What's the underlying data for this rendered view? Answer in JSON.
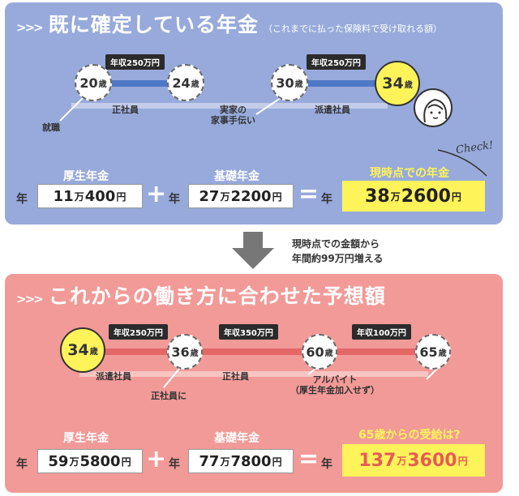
{
  "top": {
    "arrows": ">>>",
    "title": "既に確定している年金",
    "subtitle": "（これまでに払った保険料で受け取れる額）",
    "ages": {
      "a20": {
        "num": "20",
        "unit": "歳"
      },
      "a24": {
        "num": "24",
        "unit": "歳"
      },
      "a30": {
        "num": "30",
        "unit": "歳"
      },
      "a34": {
        "num": "34",
        "unit": "歳"
      }
    },
    "tags": [
      "年収250万円",
      "年収250万円"
    ],
    "labels": {
      "shushoku": "就職",
      "seishain": "正社員",
      "jikka": "実家の",
      "kaji": "家事手伝い",
      "haken": "派遣社員"
    },
    "check": "Check!",
    "kosei_label": "厚生年金",
    "kiso_label": "基礎年金",
    "result_label": "現時点での年金",
    "nen": "年",
    "kosei": {
      "man": "11",
      "man_unit": "万",
      "rest": "400",
      "yen": "円"
    },
    "kiso": {
      "man": "27",
      "man_unit": "万",
      "rest": "2200",
      "yen": "円"
    },
    "result": {
      "man": "38",
      "man_unit": "万",
      "rest": "2600",
      "yen": "円"
    },
    "plus": "+",
    "equals": "="
  },
  "note": {
    "line1": "現時点での金額から",
    "line2": "年間約99万円増える"
  },
  "bottom": {
    "arrows": ">>>",
    "title": "これからの働き方に合わせた予想額",
    "ages": {
      "a34": {
        "num": "34",
        "unit": "歳"
      },
      "a36": {
        "num": "36",
        "unit": "歳"
      },
      "a60": {
        "num": "60",
        "unit": "歳"
      },
      "a65": {
        "num": "65",
        "unit": "歳"
      }
    },
    "tags": [
      "年収250万円",
      "年収350万円",
      "年収100万円"
    ],
    "labels": {
      "haken": "派遣社員",
      "seishain_ni": "正社員に",
      "seishain": "正社員",
      "arubaito": "アルバイト",
      "arubaito_note": "（厚生年金加入せず）"
    },
    "kosei_label": "厚生年金",
    "kiso_label": "基礎年金",
    "result_label": "65歳からの受給は?",
    "nen": "年",
    "kosei": {
      "man": "59",
      "man_unit": "万",
      "rest": "5800",
      "yen": "円"
    },
    "kiso": {
      "man": "77",
      "man_unit": "万",
      "rest": "7800",
      "yen": "円"
    },
    "result": {
      "man": "137",
      "man_unit": "万",
      "rest": "3600",
      "yen": "円"
    },
    "plus": "+",
    "equals": "="
  },
  "colors": {
    "top_panel": "#97aadb",
    "bottom_panel": "#f29a97",
    "highlight": "#fff35a",
    "accent_red": "#e65c54",
    "band_blue": "#4f78c6"
  }
}
